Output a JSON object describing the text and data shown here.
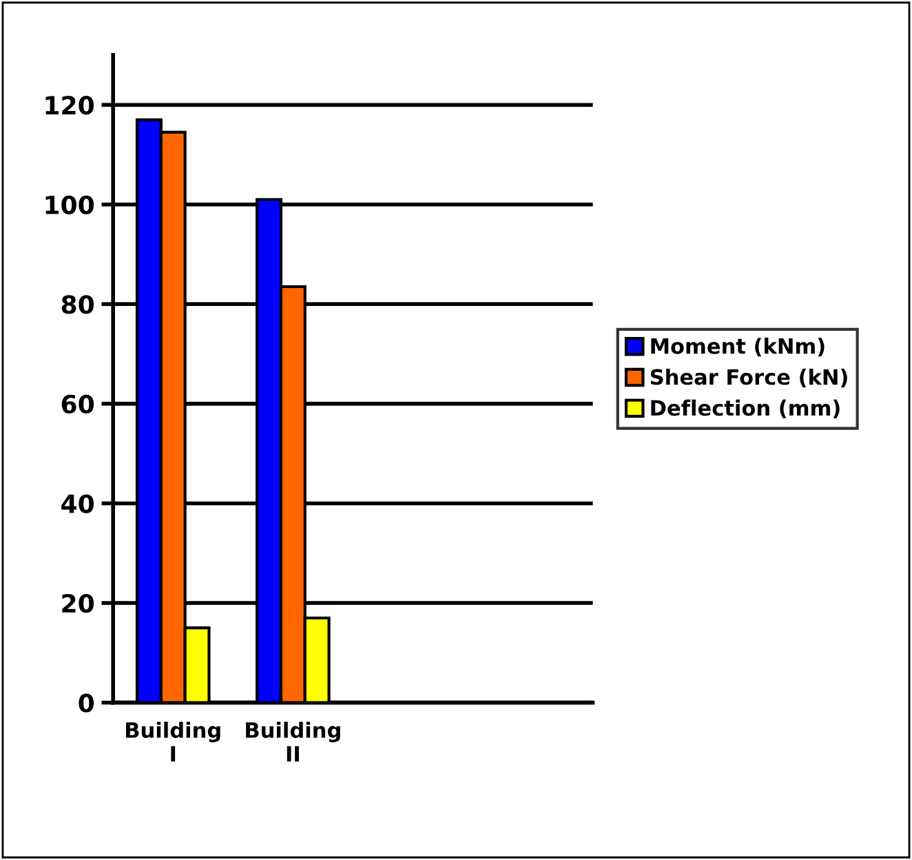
{
  "chart_data": {
    "type": "bar",
    "categories": [
      "Building I",
      "Building II",
      null,
      null
    ],
    "series": [
      {
        "name": "Moment (kNm)",
        "color": "#0000ff",
        "values": [
          117,
          101,
          null,
          null
        ]
      },
      {
        "name": "Shear Force (kN)",
        "color": "#ff6600",
        "values": [
          114.5,
          83.5,
          null,
          null
        ]
      },
      {
        "name": "Deflection (mm)",
        "color": "#ffff00",
        "values": [
          15,
          17,
          null,
          null
        ]
      }
    ],
    "ylim": [
      0,
      130
    ],
    "yticks": [
      0,
      20,
      40,
      60,
      80,
      100,
      120
    ],
    "grid": "y",
    "legend": "right"
  }
}
